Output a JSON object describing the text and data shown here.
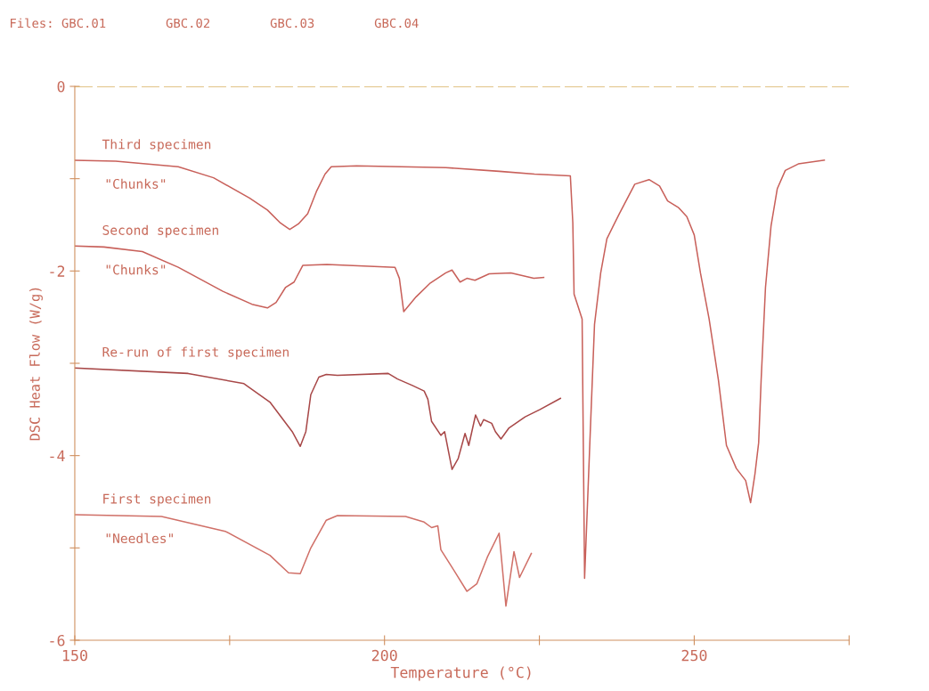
{
  "chart_data": {
    "type": "line",
    "title": "Files: GBC.01        GBC.02        GBC.03        GBC.04",
    "xlabel": "Temperature (°C)",
    "ylabel": "DSC Heat Flow (W/g)",
    "xlim": [
      150,
      275
    ],
    "xticks": [
      150,
      {
        "value": 175,
        "label": null
      },
      200,
      {
        "value": 225,
        "label": null
      },
      250,
      {
        "value": 275,
        "label": null
      }
    ],
    "ylim": [
      -6,
      0
    ],
    "yticks": [
      {
        "value": 0,
        "label": "0"
      },
      {
        "value": -1,
        "label": null
      },
      {
        "value": -2,
        "label": "-2"
      },
      {
        "value": -3,
        "label": null
      },
      {
        "value": -4,
        "label": "-4"
      },
      {
        "value": -5,
        "label": null
      },
      {
        "value": -6,
        "label": "-6"
      }
    ],
    "grid": false,
    "legend": false,
    "marker": "none",
    "line_style": "solid",
    "ref_lines": [
      {
        "axis": "y",
        "value": 0,
        "color": "#d8b060",
        "line_style": "dashed"
      }
    ],
    "series": [
      {
        "name": "Third specimen\n\"Chunks\"",
        "color": "#c8605a",
        "x": [
          150.0,
          156.6,
          166.7,
          172.4,
          178.2,
          181.1,
          183.2,
          184.7,
          186.1,
          187.6,
          189.0,
          190.4,
          191.4,
          195.5,
          209.9,
          218.5,
          224.2,
          230.0,
          230.4,
          230.6,
          231.9,
          232.3,
          233.3,
          233.9,
          234.9,
          235.9,
          237.9,
          240.4,
          242.7,
          244.4,
          245.7,
          247.4,
          248.8,
          250.0,
          251.0,
          252.4,
          253.9,
          255.2,
          256.8,
          258.3,
          259.1,
          259.8,
          260.4,
          260.8,
          261.5,
          262.4,
          263.4,
          264.7,
          266.8,
          271.0
        ],
        "values": [
          -0.8,
          -0.81,
          -0.87,
          -0.99,
          -1.21,
          -1.34,
          -1.48,
          -1.55,
          -1.49,
          -1.38,
          -1.14,
          -0.95,
          -0.87,
          -0.86,
          -0.88,
          -0.92,
          -0.95,
          -0.97,
          -1.48,
          -2.25,
          -2.52,
          -5.33,
          -3.6,
          -2.58,
          -2.02,
          -1.65,
          -1.38,
          -1.06,
          -1.01,
          -1.08,
          -1.24,
          -1.31,
          -1.41,
          -1.61,
          -2.02,
          -2.52,
          -3.18,
          -3.89,
          -4.14,
          -4.27,
          -4.51,
          -4.2,
          -3.86,
          -3.18,
          -2.18,
          -1.51,
          -1.11,
          -0.91,
          -0.84,
          -0.8
        ]
      },
      {
        "name": "Second specimen\n\"Chunks\"",
        "color": "#c8605a",
        "x": [
          150.0,
          154.7,
          160.9,
          166.7,
          173.9,
          178.6,
          181.1,
          182.5,
          184.0,
          185.4,
          186.8,
          190.7,
          201.7,
          202.4,
          203.1,
          205.1,
          207.4,
          209.9,
          210.9,
          212.2,
          213.3,
          214.6,
          216.9,
          220.4,
          224.1,
          225.7
        ],
        "values": [
          -1.73,
          -1.74,
          -1.79,
          -1.96,
          -2.22,
          -2.36,
          -2.4,
          -2.34,
          -2.18,
          -2.12,
          -1.94,
          -1.93,
          -1.96,
          -2.08,
          -2.44,
          -2.28,
          -2.13,
          -2.02,
          -1.99,
          -2.12,
          -2.08,
          -2.1,
          -2.03,
          -2.02,
          -2.08,
          -2.07
        ]
      },
      {
        "name": "Re-run of first specimen",
        "color": "#a84848",
        "x": [
          150.0,
          168.3,
          177.3,
          181.5,
          185.1,
          186.4,
          187.3,
          188.1,
          189.4,
          190.6,
          192.4,
          200.6,
          202.1,
          204.5,
          206.4,
          207.0,
          207.6,
          209.1,
          209.7,
          210.9,
          211.9,
          213.0,
          213.6,
          214.7,
          215.5,
          216.0,
          217.3,
          217.9,
          218.8,
          220.1,
          222.7,
          225.1,
          228.4
        ],
        "values": [
          -3.05,
          -3.11,
          -3.22,
          -3.42,
          -3.74,
          -3.9,
          -3.74,
          -3.34,
          -3.15,
          -3.12,
          -3.13,
          -3.11,
          -3.17,
          -3.24,
          -3.3,
          -3.39,
          -3.63,
          -3.78,
          -3.74,
          -4.15,
          -4.03,
          -3.76,
          -3.89,
          -3.56,
          -3.68,
          -3.61,
          -3.65,
          -3.74,
          -3.82,
          -3.7,
          -3.58,
          -3.5,
          -3.38
        ]
      },
      {
        "name": "First specimen\n\"Needles\"",
        "color": "#d07068",
        "x": [
          150.0,
          164.0,
          174.3,
          181.5,
          184.5,
          186.4,
          188.1,
          190.6,
          192.4,
          203.4,
          206.4,
          207.6,
          208.6,
          209.1,
          210.9,
          213.3,
          214.9,
          216.6,
          218.5,
          219.6,
          220.9,
          221.8,
          223.7
        ],
        "values": [
          -4.64,
          -4.66,
          -4.82,
          -5.08,
          -5.27,
          -5.28,
          -5.0,
          -4.7,
          -4.65,
          -4.66,
          -4.72,
          -4.78,
          -4.76,
          -5.02,
          -5.21,
          -5.47,
          -5.39,
          -5.1,
          -4.84,
          -5.63,
          -5.04,
          -5.32,
          -5.06
        ]
      }
    ]
  }
}
